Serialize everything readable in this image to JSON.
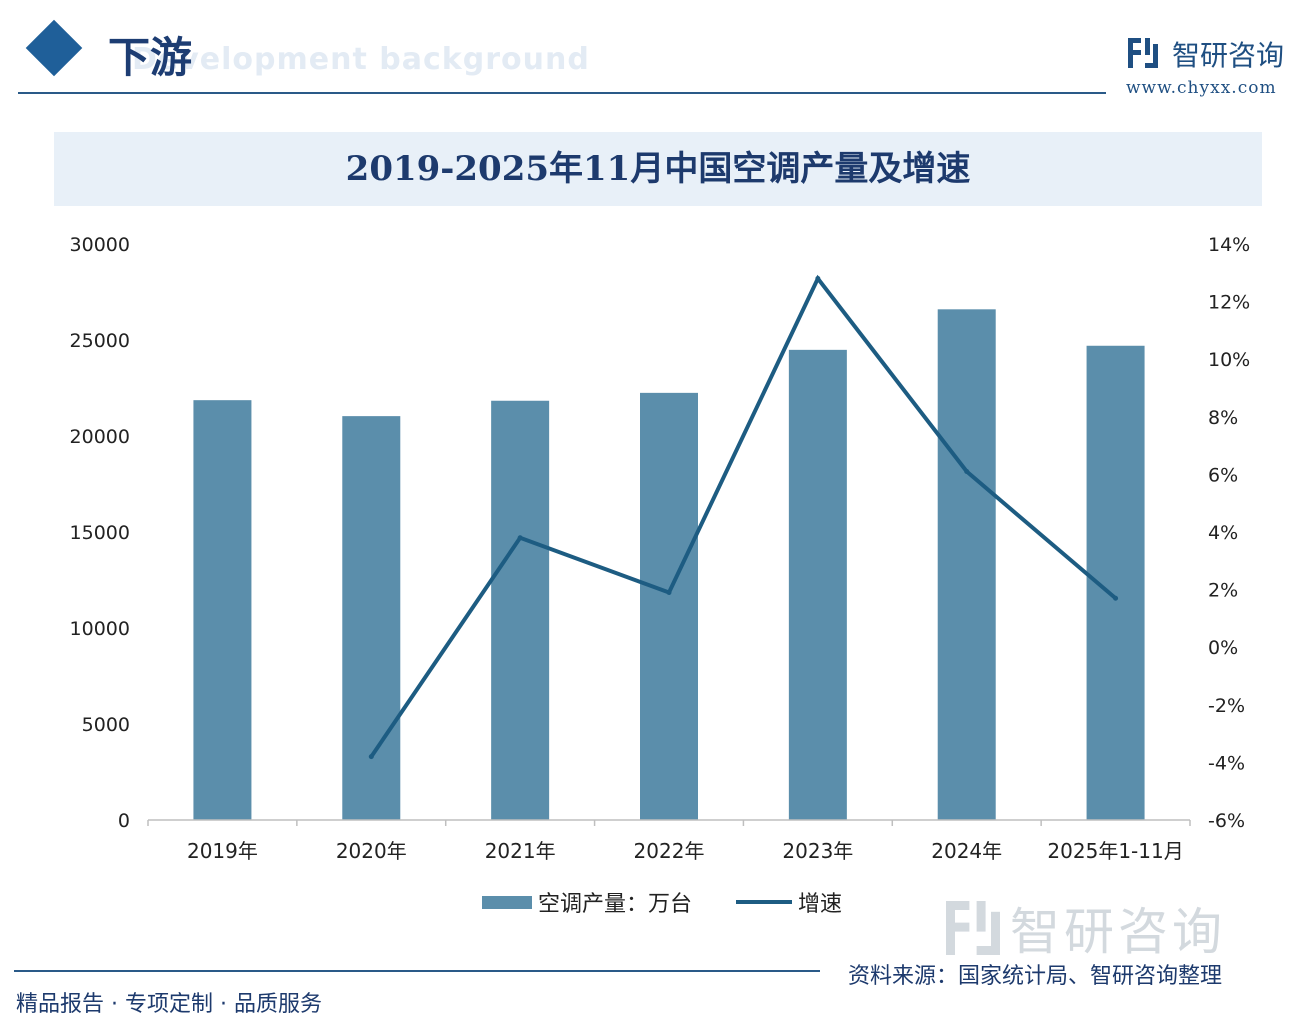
{
  "header": {
    "title": "下游",
    "subtitle": "Development background",
    "brand_name": "智研咨询",
    "brand_url": "www.chyxx.com"
  },
  "colors": {
    "bar": "#5b8eab",
    "line": "#1d5c82",
    "accent": "#1f5f99",
    "text_dark": "#1d3a6d"
  },
  "chart_data": {
    "type": "bar",
    "title": "2019-2025年11月中国空调产量及增速",
    "categories": [
      "2019年",
      "2020年",
      "2021年",
      "2022年",
      "2023年",
      "2024年",
      "2025年1-11月"
    ],
    "series": [
      {
        "name": "空调产量：万台",
        "type": "bar",
        "axis": "left",
        "values": [
          21866,
          21035,
          21836,
          22247,
          24487,
          26598,
          24700
        ]
      },
      {
        "name": "增速",
        "type": "line",
        "axis": "right",
        "values": [
          null,
          -3.8,
          3.8,
          1.9,
          12.8,
          6.1,
          1.7
        ]
      }
    ],
    "y_left": {
      "min": 0,
      "max": 30000,
      "ticks": [
        0,
        5000,
        10000,
        15000,
        20000,
        25000,
        30000
      ],
      "tick_labels": [
        "0",
        "5000",
        "10000",
        "15000",
        "20000",
        "25000",
        "30000"
      ]
    },
    "y_right": {
      "min": -6,
      "max": 14,
      "ticks": [
        -6,
        -4,
        -2,
        0,
        2,
        4,
        6,
        8,
        10,
        12,
        14
      ],
      "tick_labels": [
        "-6%",
        "-4%",
        "-2%",
        "0%",
        "2%",
        "4%",
        "6%",
        "8%",
        "10%",
        "12%",
        "14%"
      ]
    },
    "legend": {
      "position": "bottom"
    },
    "grid": false
  },
  "footer": {
    "slogan": "精品报告 · 专项定制 · 品质服务",
    "source": "资料来源：国家统计局、智研咨询整理"
  },
  "watermark_text": "智研咨询"
}
